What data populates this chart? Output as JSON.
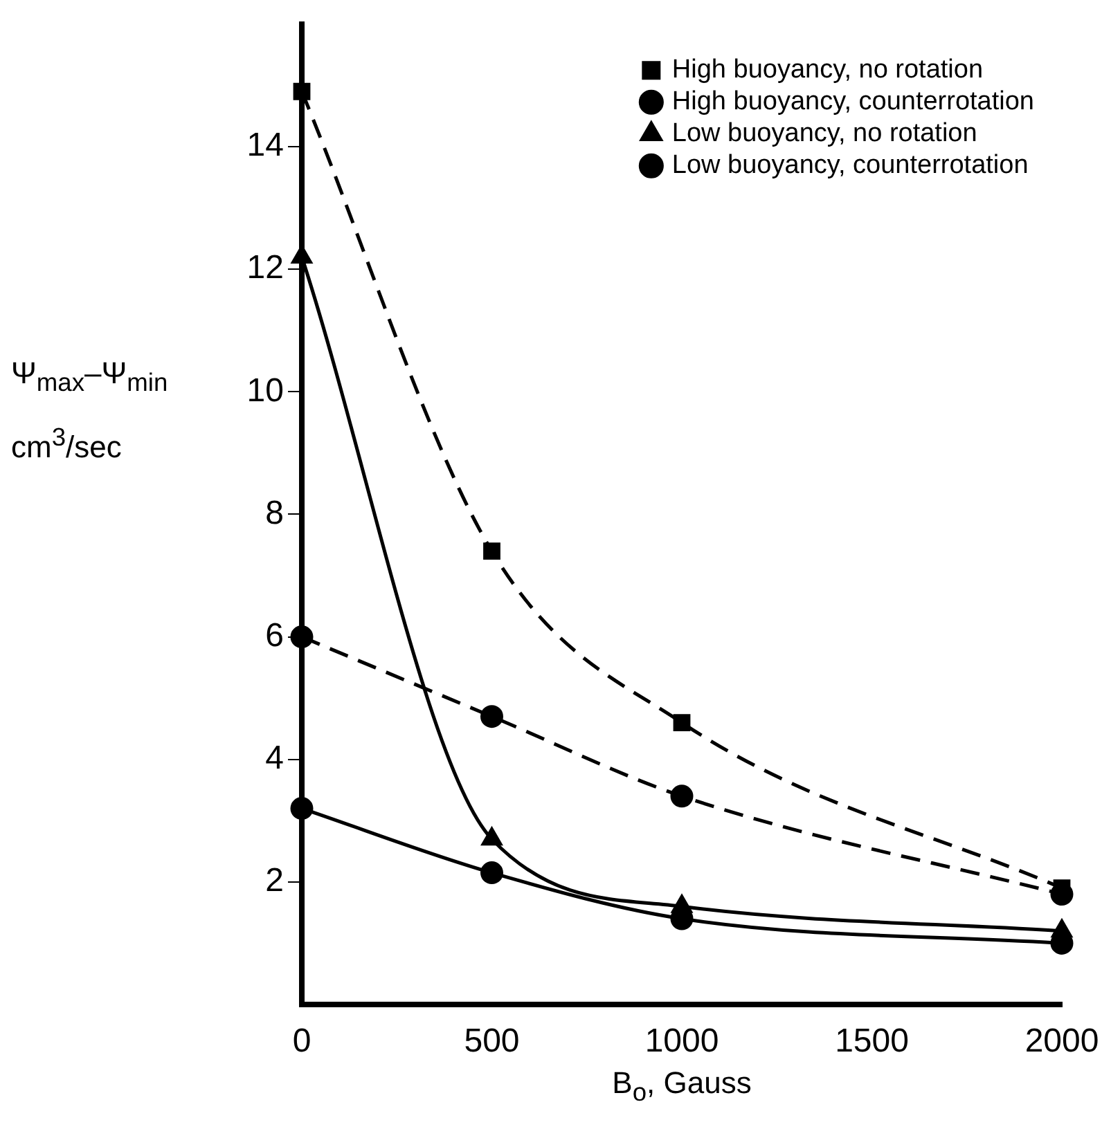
{
  "chart_data": {
    "type": "line",
    "xlabel": "B$_{o}$, Gauss",
    "ylabel": "Ψ$_{max}$–Ψ$_{min}$ cm$^{3}$/sec",
    "x": [
      0,
      500,
      1000,
      2000
    ],
    "series": [
      {
        "name": "High buoyancy, no rotation",
        "color": "#000000",
        "values": [
          14.9,
          7.4,
          4.6,
          1.9
        ],
        "marker": "square",
        "line_style": "dashed"
      },
      {
        "name": "High buoyancy, counterrotation",
        "color": "#000000",
        "values": [
          6.0,
          4.7,
          3.4,
          1.8
        ],
        "marker": "circle",
        "line_style": "dashed"
      },
      {
        "name": "Low buoyancy, no rotation",
        "color": "#000000",
        "values": [
          12.2,
          2.7,
          1.6,
          1.2
        ],
        "marker": "triangle",
        "line_style": "solid"
      },
      {
        "name": "Low buoyancy, counterrotation",
        "color": "#000000",
        "values": [
          3.2,
          2.15,
          1.4,
          1.0
        ],
        "marker": "circle",
        "line_style": "solid"
      }
    ],
    "xlim": [
      0,
      2000
    ],
    "xticks": [
      0,
      500,
      1000,
      1500,
      2000
    ],
    "ylim": [
      0,
      16
    ],
    "yticks": [
      2,
      4,
      6,
      8,
      10,
      12,
      14
    ],
    "grid": false,
    "legend": "top right"
  }
}
